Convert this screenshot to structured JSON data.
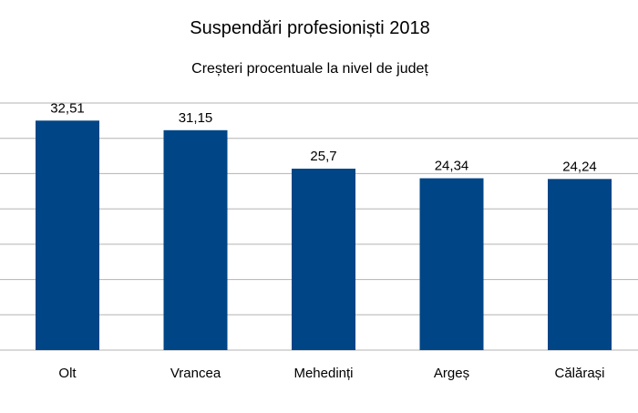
{
  "chart_data": {
    "type": "bar",
    "title": "Suspendări profesioniști 2018",
    "subtitle": "Creșteri procentuale la nivel de județ",
    "categories": [
      "Olt",
      "Vrancea",
      "Mehedinți",
      "Argeș",
      "Călărași"
    ],
    "values": [
      32.51,
      31.15,
      25.7,
      24.34,
      24.24
    ],
    "data_labels": [
      "32,51",
      "31,15",
      "25,7",
      "24,34",
      "24,24"
    ],
    "ylim": [
      0,
      35
    ],
    "grid": true,
    "bar_color": "#004586",
    "grid_color": "#b3b3b3"
  }
}
